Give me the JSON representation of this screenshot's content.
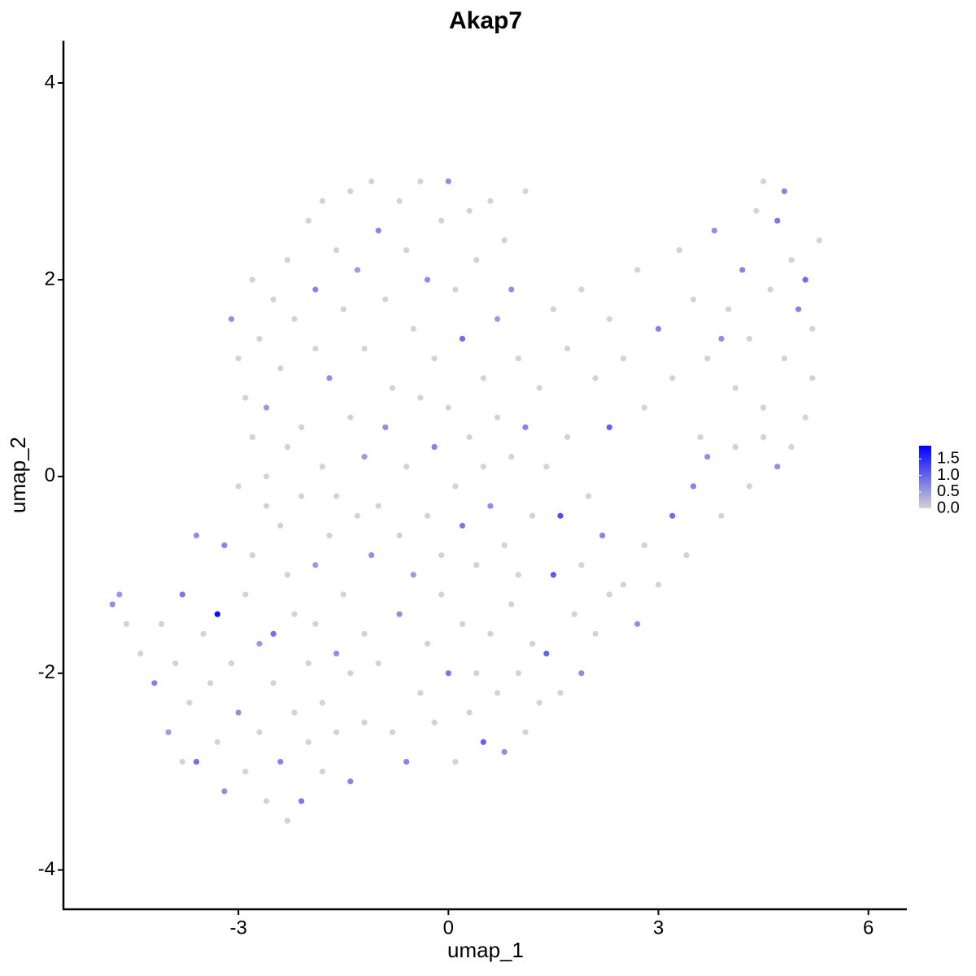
{
  "chart_data": {
    "type": "scatter",
    "title": "Akap7",
    "x_label": "umap_1",
    "y_label": "umap_2",
    "xlim": [
      -5.5,
      6.55
    ],
    "ylim": [
      -4.4,
      4.43
    ],
    "xticks": [
      -3,
      0,
      3,
      6
    ],
    "yticks": [
      -4,
      -2,
      0,
      2,
      4
    ],
    "colorlim": [
      0,
      1.9
    ],
    "low_color": "#d3d3d3",
    "high_color": "#0000ff",
    "colorbar_ticks": [
      {
        "value": 0,
        "label": "0.0"
      },
      0.5,
      {
        "value": 1,
        "label": "1.0"
      },
      1.5
    ],
    "x": [
      -4.8,
      -4.7,
      -4.6,
      -4.4,
      -4.2,
      -4.1,
      -4.0,
      -3.9,
      -3.8,
      -3.8,
      -3.7,
      -3.6,
      -3.6,
      -3.5,
      -3.4,
      -3.3,
      -3.3,
      -3.2,
      -3.2,
      -3.1,
      -3.0,
      -3.0,
      -2.9,
      -2.9,
      -2.8,
      -2.8,
      -2.7,
      -2.7,
      -2.6,
      -2.6,
      -2.5,
      -2.5,
      -2.4,
      -2.4,
      -2.3,
      -2.3,
      -2.2,
      -2.2,
      -2.1,
      -2.1,
      -2.0,
      -2.0,
      -1.9,
      -1.9,
      -1.8,
      -1.8,
      -1.7,
      -1.6,
      -1.6,
      -1.5,
      -1.4,
      -1.4,
      -1.3,
      -1.2,
      -1.2,
      -1.1,
      -3.1,
      -3.0,
      -2.9,
      -2.8,
      -2.7,
      -2.6,
      -2.5,
      -2.4,
      -2.3,
      -2.2,
      -2.1,
      -2.0,
      -1.9,
      -1.9,
      -1.8,
      -1.7,
      -1.6,
      -1.5,
      -1.4,
      -1.3,
      -1.2,
      -1.1,
      -1.0,
      -0.9,
      -0.8,
      -0.7,
      -0.6,
      -0.5,
      -0.4,
      -0.3,
      -0.2,
      -0.1,
      0.0,
      0.1,
      0.2,
      0.3,
      0.4,
      0.5,
      0.6,
      0.7,
      0.8,
      0.9,
      1.1,
      1.0,
      -2.6,
      -2.3,
      -1.8,
      -1.6,
      -1.4,
      -1.2,
      -1.0,
      -0.9,
      -0.7,
      -0.6,
      -0.5,
      -0.4,
      -0.3,
      -0.2,
      -0.1,
      0.0,
      0.1,
      0.2,
      0.3,
      0.4,
      0.5,
      0.6,
      0.7,
      0.8,
      0.9,
      1.0,
      1.1,
      1.2,
      1.3,
      1.4,
      1.6,
      1.7,
      1.9,
      2.0,
      2.2,
      2.3,
      -1.0,
      -0.8,
      -0.7,
      -0.6,
      -0.4,
      -0.3,
      -0.2,
      -0.1,
      0.0,
      0.1,
      0.2,
      0.3,
      0.4,
      0.5,
      0.6,
      0.7,
      0.8,
      0.9,
      1.0,
      1.1,
      1.2,
      1.3,
      1.4,
      1.5,
      1.6,
      1.8,
      1.9,
      2.1,
      2.3,
      2.5,
      2.7,
      2.8,
      3.0,
      3.2,
      3.4,
      3.5,
      3.7,
      3.9,
      4.1,
      4.3,
      4.5,
      4.7,
      4.9,
      5.1,
      1.5,
      1.7,
      1.9,
      2.1,
      2.3,
      2.5,
      2.7,
      2.8,
      3.0,
      3.2,
      3.3,
      3.5,
      3.6,
      3.7,
      3.8,
      4.0,
      4.1,
      4.2,
      4.3,
      4.4,
      4.5,
      4.6,
      4.7,
      4.8,
      4.9,
      5.0,
      5.1,
      5.2,
      5.3,
      5.2,
      4.5,
      4.8,
      3.9
    ],
    "y": [
      -1.3,
      -1.2,
      -1.5,
      -1.8,
      -2.1,
      -1.5,
      -2.6,
      -1.9,
      -2.9,
      -1.2,
      -2.3,
      -2.9,
      -0.6,
      -1.6,
      -2.1,
      -2.7,
      -1.4,
      -0.7,
      -3.2,
      -1.9,
      -0.1,
      -2.4,
      -1.2,
      -3.0,
      0.4,
      -0.8,
      -1.7,
      -2.6,
      -0.3,
      -3.3,
      -1.6,
      -2.1,
      -2.9,
      -0.5,
      -1.0,
      -3.5,
      -2.4,
      -1.4,
      -3.3,
      -0.2,
      -1.9,
      -2.7,
      -0.9,
      -1.5,
      -2.3,
      -3.0,
      -0.6,
      -1.8,
      -2.6,
      -1.2,
      -2.0,
      -3.1,
      -0.4,
      -1.6,
      -2.5,
      -0.8,
      1.6,
      1.2,
      0.8,
      2.0,
      1.4,
      0.7,
      1.8,
      1.1,
      2.2,
      1.6,
      0.5,
      2.6,
      1.9,
      1.3,
      2.8,
      1.0,
      2.3,
      1.7,
      2.9,
      2.1,
      1.3,
      3.0,
      2.5,
      1.8,
      0.9,
      2.8,
      2.3,
      1.5,
      3.0,
      2.0,
      1.2,
      2.6,
      3.0,
      1.9,
      1.4,
      2.7,
      2.2,
      1.0,
      2.8,
      1.6,
      2.4,
      1.9,
      2.9,
      1.2,
      0.0,
      0.3,
      0.1,
      -0.2,
      0.6,
      0.2,
      -0.3,
      0.5,
      -0.6,
      0.1,
      -1.0,
      0.8,
      -0.4,
      0.3,
      -0.8,
      0.7,
      -0.1,
      -0.5,
      0.4,
      -0.9,
      0.1,
      -0.3,
      0.6,
      -0.7,
      0.2,
      -1.0,
      0.5,
      -0.4,
      0.9,
      0.1,
      -0.4,
      0.4,
      -0.9,
      -0.2,
      -0.6,
      0.5,
      -1.9,
      -2.6,
      -1.4,
      -2.9,
      -2.2,
      -1.7,
      -2.5,
      -1.2,
      -2.0,
      -2.9,
      -1.5,
      -2.4,
      -2.0,
      -2.7,
      -1.6,
      -2.2,
      -2.8,
      -1.3,
      -2.0,
      -2.6,
      -1.7,
      -2.3,
      -1.8,
      -1.0,
      -2.2,
      -1.4,
      -2.0,
      -1.6,
      -1.2,
      -1.1,
      -1.5,
      -0.7,
      -1.1,
      -0.4,
      -0.8,
      -0.1,
      0.2,
      -0.4,
      0.3,
      -0.1,
      0.4,
      0.1,
      0.3,
      0.6,
      1.7,
      1.3,
      1.9,
      1.0,
      1.6,
      1.2,
      2.1,
      0.7,
      1.5,
      1.0,
      2.3,
      1.8,
      0.4,
      1.2,
      2.5,
      1.7,
      0.9,
      2.1,
      1.4,
      2.7,
      0.7,
      1.9,
      2.6,
      1.2,
      2.2,
      1.7,
      2.0,
      1.0,
      2.4,
      1.5,
      3.0,
      2.9,
      1.4
    ],
    "values": [
      0.6,
      0.5,
      0,
      0,
      0.7,
      0,
      0.5,
      0,
      0,
      0.8,
      0,
      0.9,
      0.6,
      0,
      0,
      0,
      1.8,
      0.7,
      0.6,
      0,
      0,
      0.6,
      0,
      0,
      0,
      0,
      0.5,
      0,
      0,
      0,
      0.9,
      0,
      0.7,
      0,
      0,
      0,
      0,
      0,
      0.8,
      0,
      0,
      0,
      0.5,
      0,
      0,
      0,
      0,
      0.6,
      0,
      0,
      0,
      0.7,
      0,
      0,
      0,
      0.6,
      0.6,
      0,
      0,
      0,
      0,
      0.5,
      0,
      0,
      0,
      0,
      0,
      0,
      0.7,
      0,
      0,
      0.6,
      0,
      0,
      0,
      0.5,
      0,
      0,
      0.7,
      0,
      0,
      0,
      0,
      0,
      0,
      0.6,
      0,
      0,
      0.6,
      0,
      0.9,
      0,
      0,
      0,
      0,
      0.5,
      0,
      0.6,
      0,
      0,
      0,
      0,
      0,
      0,
      0,
      0.5,
      0,
      0.6,
      0,
      0,
      0.5,
      0,
      0,
      0.7,
      0,
      0,
      0,
      0.8,
      0,
      0,
      0,
      0.6,
      0,
      0,
      0,
      0,
      0.7,
      0,
      0,
      0,
      1.2,
      0,
      0,
      0,
      0.7,
      1.0,
      0,
      0,
      0.6,
      0.7,
      0,
      0,
      0,
      0,
      0.8,
      0,
      0,
      0,
      0,
      1.0,
      0,
      0,
      0.6,
      0,
      0,
      0,
      0,
      0,
      1.0,
      1.1,
      0,
      0,
      0.6,
      0,
      0,
      0,
      0.6,
      0,
      0,
      0.9,
      0,
      0.7,
      0.6,
      0,
      0,
      0,
      0,
      0.6,
      0,
      0,
      0,
      0,
      0,
      0,
      0,
      0,
      0,
      0,
      0.7,
      0,
      0,
      0,
      0,
      0,
      0.6,
      0,
      0,
      0.7,
      0,
      0,
      0,
      0,
      0.8,
      0,
      0,
      0.7,
      0.9,
      0,
      0,
      0,
      0,
      0.7,
      0.6
    ]
  }
}
